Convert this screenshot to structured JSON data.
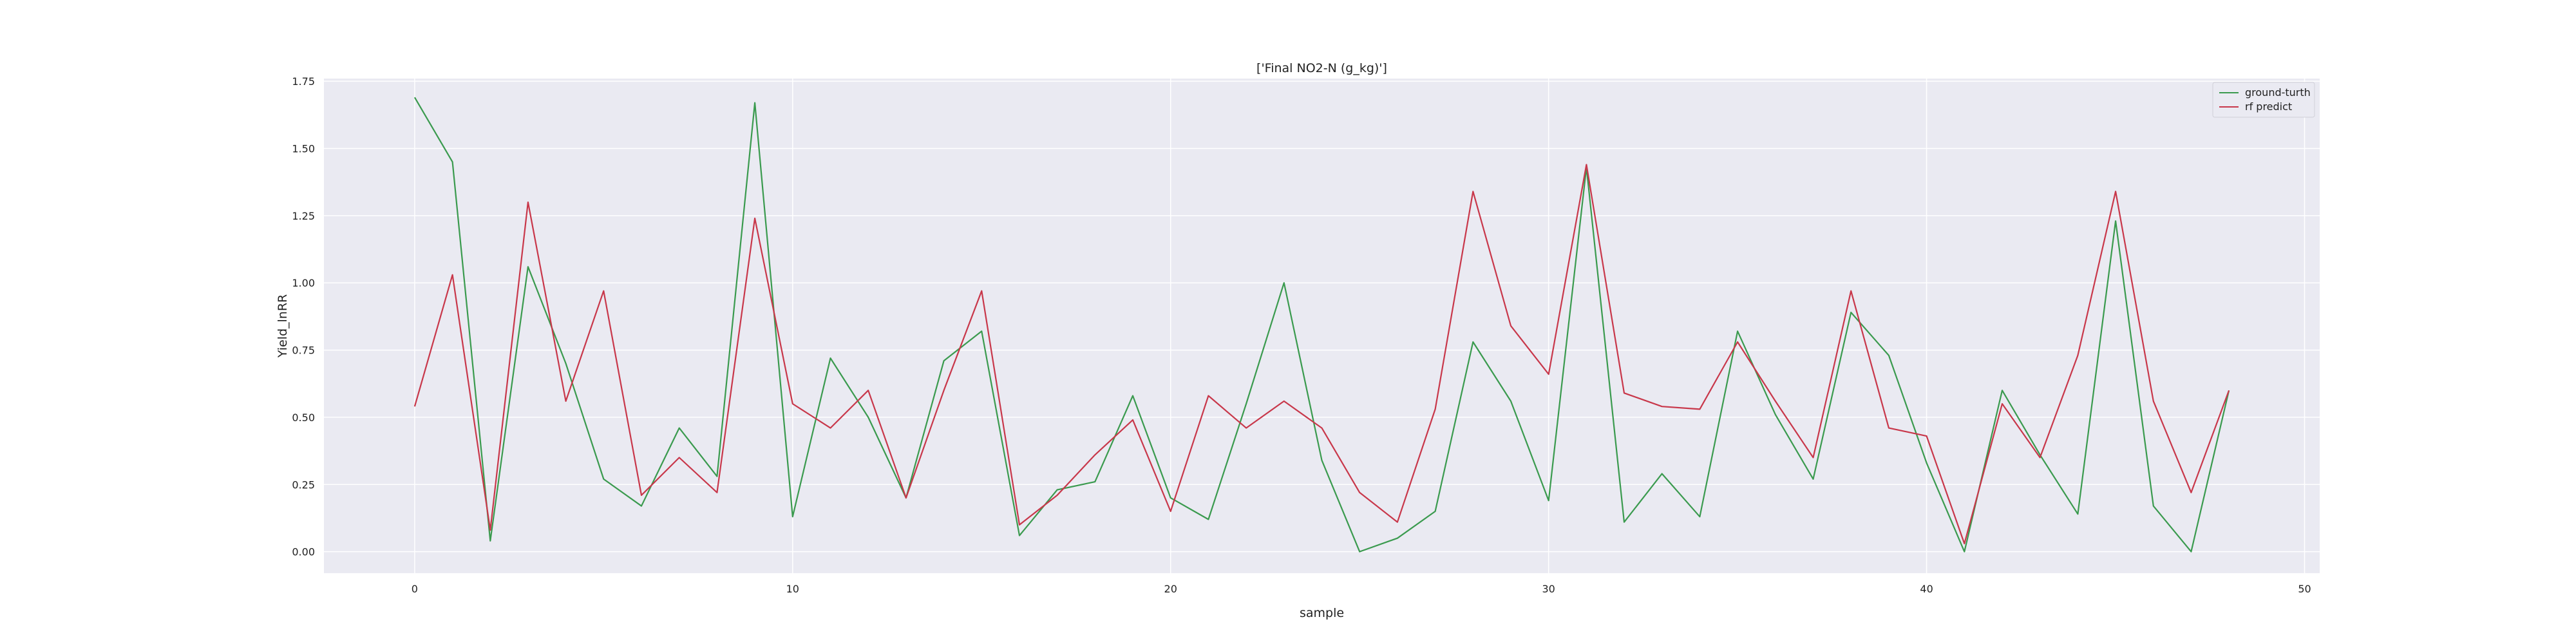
{
  "chart_data": {
    "type": "line",
    "title": "['Final NO2-N (g_kg)']",
    "xlabel": "sample",
    "ylabel": "Yield_lnRR",
    "xlim": [
      -2.4,
      50.4
    ],
    "ylim": [
      -0.08,
      1.76
    ],
    "xticks": [
      0,
      10,
      20,
      30,
      40,
      50
    ],
    "yticks": [
      0.0,
      0.25,
      0.5,
      0.75,
      1.0,
      1.25,
      1.5,
      1.75
    ],
    "grid": true,
    "legend_position": "top-right",
    "x": [
      0,
      1,
      2,
      3,
      4,
      5,
      6,
      7,
      8,
      9,
      10,
      11,
      12,
      13,
      14,
      15,
      16,
      17,
      18,
      19,
      20,
      21,
      22,
      23,
      24,
      25,
      26,
      27,
      28,
      29,
      30,
      31,
      32,
      33,
      34,
      35,
      36,
      37,
      38,
      39,
      40,
      41,
      42,
      43,
      44,
      45,
      46,
      47,
      48
    ],
    "series": [
      {
        "name": "ground-turth",
        "color": "#3a9a4e",
        "values": [
          1.69,
          1.45,
          0.04,
          1.06,
          0.7,
          0.27,
          0.17,
          0.46,
          0.28,
          1.67,
          0.13,
          0.72,
          0.5,
          0.2,
          0.71,
          0.82,
          0.06,
          0.23,
          0.26,
          0.58,
          0.2,
          0.12,
          0.55,
          1.0,
          0.34,
          0.0,
          0.05,
          0.15,
          0.78,
          0.56,
          0.19,
          1.43,
          0.11,
          0.29,
          0.13,
          0.82,
          0.51,
          0.27,
          0.89,
          0.73,
          0.33,
          0.0,
          0.6,
          0.36,
          0.14,
          1.23,
          0.17,
          0.0,
          0.6
        ]
      },
      {
        "name": "rf predict",
        "color": "#c8374a",
        "values": [
          0.54,
          1.03,
          0.08,
          1.3,
          0.56,
          0.97,
          0.21,
          0.35,
          0.22,
          1.24,
          0.55,
          0.46,
          0.6,
          0.2,
          0.6,
          0.97,
          0.1,
          0.21,
          0.36,
          0.49,
          0.15,
          0.58,
          0.46,
          0.56,
          0.46,
          0.22,
          0.11,
          0.53,
          1.34,
          0.84,
          0.66,
          1.44,
          0.59,
          0.54,
          0.53,
          0.78,
          0.56,
          0.35,
          0.97,
          0.46,
          0.43,
          0.03,
          0.55,
          0.35,
          0.73,
          1.34,
          0.56,
          0.22,
          0.6
        ]
      }
    ]
  }
}
